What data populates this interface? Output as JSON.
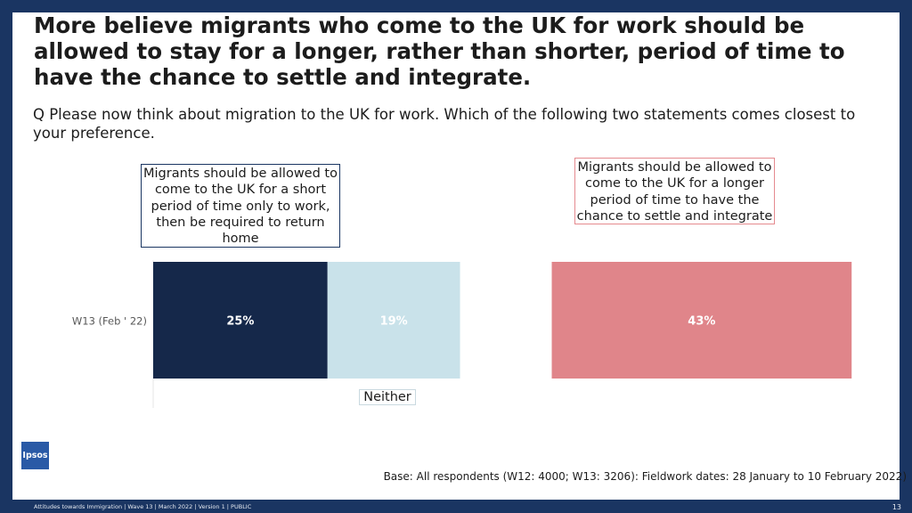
{
  "slide": {
    "title": "More believe migrants who come to the UK for work should be allowed to stay for a longer, rather than shorter, period of time to have the chance to settle and integrate.",
    "question": "Q Please now think about migration to the UK for work. Which of the following two statements comes closest to your preference.",
    "base_note": "Base: All respondents (W12: 4000; W13: 3206): Fieldwork dates: 28 January to 10 February 2022)",
    "logo_text": "Ipsos",
    "footer_text": "Attitudes towards Immigration | Wave 13 | March 2022 | Version 1 | PUBLIC",
    "page_number": "13"
  },
  "chart_data": {
    "type": "bar",
    "orientation": "horizontal",
    "categories": [
      "W13 (Feb ' 22)"
    ],
    "series": [
      {
        "name": "Migrants should be allowed to come to the UK for a short period of time only to work, then be required to return home",
        "values": [
          25
        ],
        "label": "25%",
        "color": "#15284a",
        "label_color": "#ffffff"
      },
      {
        "name": "Neither",
        "values": [
          19
        ],
        "label": "19%",
        "color": "#c9e2ea",
        "label_color": "#ffffff"
      },
      {
        "name": "Migrants should be allowed to come to the UK for a longer period of time to have the chance to settle and integrate",
        "values": [
          43
        ],
        "label": "43%",
        "color": "#e0858a",
        "label_color": "#ffffff"
      }
    ],
    "grid": false
  }
}
